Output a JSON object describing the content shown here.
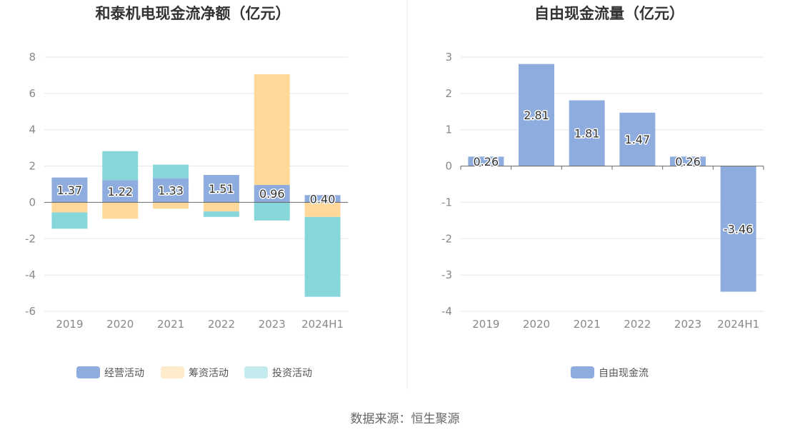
{
  "source": "数据来源：恒生聚源",
  "colors": {
    "operating": "#8eadde",
    "financing": "#ffd89a",
    "investing": "#87d6da",
    "fcf": "#8eadde",
    "grid": "#e6e6e6",
    "axis": "#666666"
  },
  "chart_data": [
    {
      "type": "bar",
      "stacked": true,
      "title": "和泰机电现金流净额（亿元）",
      "categories": [
        "2019",
        "2020",
        "2021",
        "2022",
        "2023",
        "2024H1"
      ],
      "ylim": [
        -6,
        8
      ],
      "yticks": [
        "8",
        "6",
        "4",
        "2",
        "0",
        "-2",
        "-4",
        "-6"
      ],
      "grid": true,
      "legend": "bottom",
      "series": [
        {
          "name": "经营活动",
          "color_key": "operating",
          "values": [
            1.37,
            1.22,
            1.33,
            1.51,
            0.96,
            0.4
          ],
          "labels": [
            "1.37",
            "1.22",
            "1.33",
            "1.51",
            "0.96",
            "0.40"
          ]
        },
        {
          "name": "筹资活动",
          "color_key": "financing",
          "values": [
            -0.55,
            -0.9,
            -0.35,
            -0.5,
            6.1,
            -0.8
          ]
        },
        {
          "name": "投资活动",
          "color_key": "investing",
          "values": [
            -0.9,
            1.6,
            0.75,
            -0.3,
            -1.0,
            -4.4
          ]
        }
      ]
    },
    {
      "type": "bar",
      "title": "自由现金流量（亿元）",
      "categories": [
        "2019",
        "2020",
        "2021",
        "2022",
        "2023",
        "2024H1"
      ],
      "ylim": [
        -4,
        3
      ],
      "yticks": [
        "3",
        "2",
        "1",
        "0",
        "-1",
        "-2",
        "-3",
        "-4"
      ],
      "grid": true,
      "legend": "bottom",
      "series": [
        {
          "name": "自由现金流",
          "color_key": "fcf",
          "values": [
            0.26,
            2.81,
            1.81,
            1.47,
            0.26,
            -3.46
          ],
          "labels": [
            "0.26",
            "2.81",
            "1.81",
            "1.47",
            "0.26",
            "-3.46"
          ]
        }
      ]
    }
  ]
}
